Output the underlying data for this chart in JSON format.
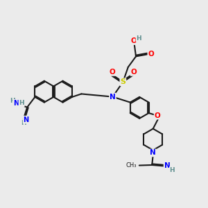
{
  "bg_color": "#ebebeb",
  "bond_color": "#1a1a1a",
  "N_color": "#0000ff",
  "O_color": "#ff0000",
  "S_color": "#cccc00",
  "H_color": "#5f8f8f",
  "figsize": [
    3.0,
    3.0
  ],
  "dpi": 100,
  "xlim": [
    0,
    10
  ],
  "ylim": [
    0,
    10
  ]
}
